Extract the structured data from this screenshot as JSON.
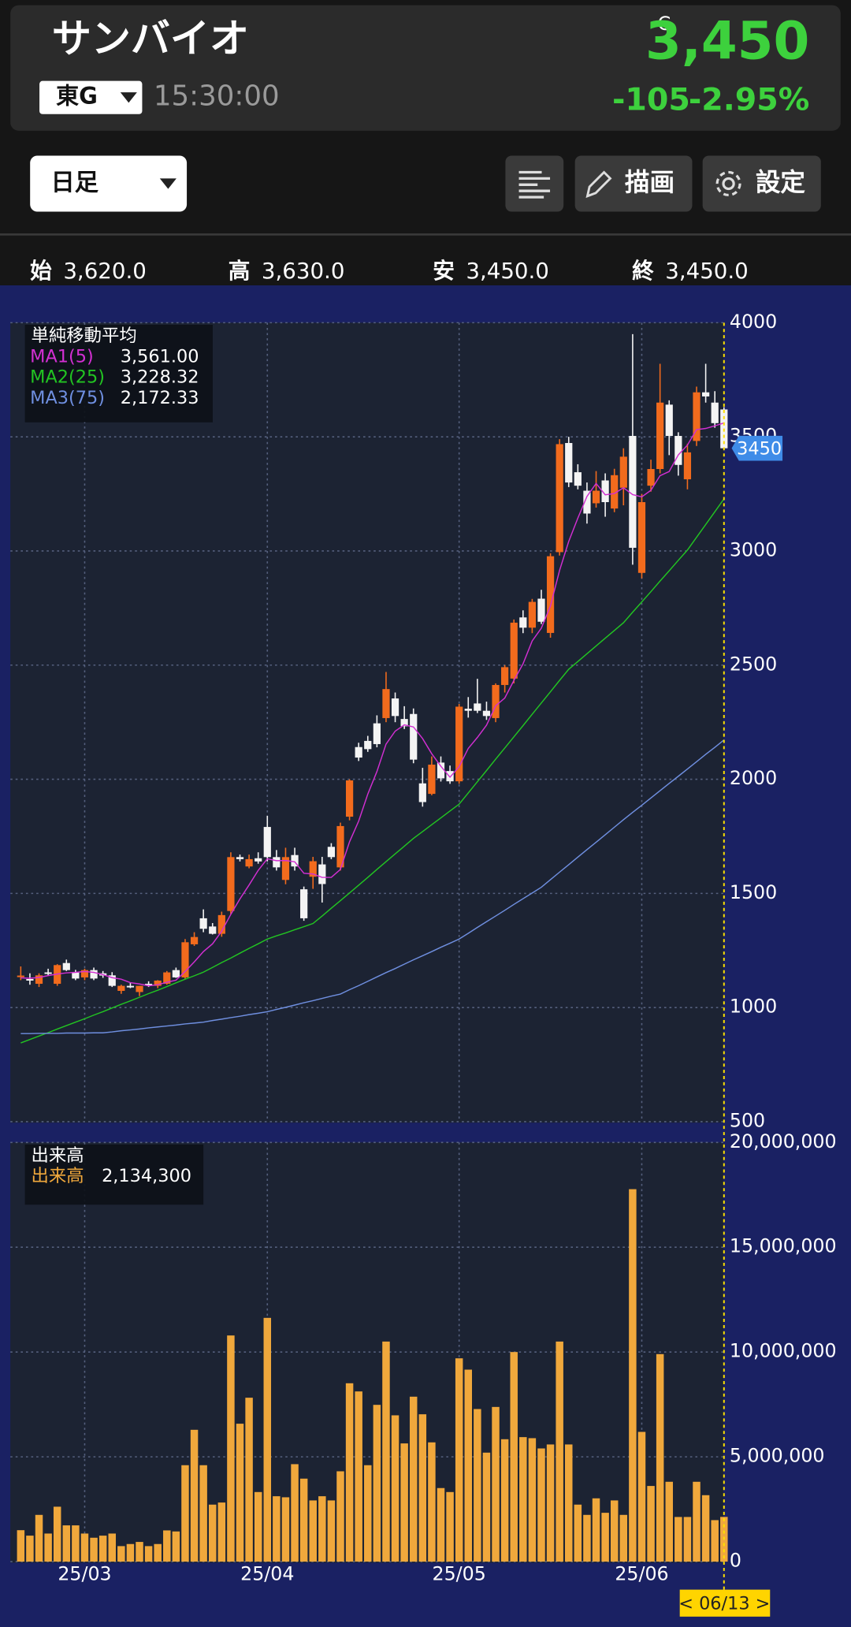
{
  "header": {
    "name": "サンバイオ",
    "market": "東G",
    "time": "15:30:00",
    "price_flag": "C",
    "price": "3,450",
    "change": "-105",
    "change_pct": "-2.95%"
  },
  "toolbar": {
    "period": "日足",
    "draw": "描画",
    "settings": "設定"
  },
  "ohlc": [
    {
      "key": "始",
      "value": "3,620.0"
    },
    {
      "key": "高",
      "value": "3,630.0"
    },
    {
      "key": "安",
      "value": "3,450.0"
    },
    {
      "key": "終",
      "value": "3,450.0"
    }
  ],
  "cursor_label": "< 06/13 >",
  "chart_data": [
    {
      "type": "candlestick",
      "title": "単純移動平均",
      "up_color": "#f26b1d",
      "down_color": "#f4f4f4",
      "ylim": [
        500,
        4000
      ],
      "yticks": [
        500,
        1000,
        1500,
        2000,
        2500,
        3000,
        3500,
        4000
      ],
      "grid": true,
      "ohlc": [
        [
          1140,
          1180,
          1120,
          1140
        ],
        [
          1125,
          1150,
          1100,
          1118
        ],
        [
          1104,
          1150,
          1090,
          1141
        ],
        [
          1154,
          1170,
          1140,
          1150
        ],
        [
          1104,
          1190,
          1095,
          1186
        ],
        [
          1195,
          1210,
          1160,
          1164
        ],
        [
          1154,
          1165,
          1120,
          1127
        ],
        [
          1132,
          1170,
          1120,
          1164
        ],
        [
          1164,
          1175,
          1120,
          1127
        ],
        [
          1150,
          1160,
          1130,
          1140
        ],
        [
          1141,
          1155,
          1090,
          1095
        ],
        [
          1073,
          1100,
          1060,
          1095
        ],
        [
          1095,
          1110,
          1085,
          1090
        ],
        [
          1068,
          1095,
          1050,
          1095
        ],
        [
          1104,
          1115,
          1090,
          1100
        ],
        [
          1095,
          1120,
          1085,
          1118
        ],
        [
          1104,
          1160,
          1100,
          1154
        ],
        [
          1164,
          1175,
          1130,
          1132
        ],
        [
          1132,
          1300,
          1125,
          1286
        ],
        [
          1277,
          1330,
          1270,
          1309
        ],
        [
          1391,
          1430,
          1330,
          1345
        ],
        [
          1355,
          1370,
          1320,
          1323
        ],
        [
          1323,
          1420,
          1310,
          1405
        ],
        [
          1423,
          1680,
          1410,
          1659
        ],
        [
          1659,
          1670,
          1640,
          1650
        ],
        [
          1618,
          1670,
          1610,
          1650
        ],
        [
          1654,
          1680,
          1630,
          1640
        ],
        [
          1791,
          1840,
          1640,
          1659
        ],
        [
          1659,
          1690,
          1600,
          1614
        ],
        [
          1559,
          1700,
          1540,
          1659
        ],
        [
          1668,
          1700,
          1600,
          1618
        ],
        [
          1518,
          1530,
          1380,
          1391
        ],
        [
          1573,
          1660,
          1520,
          1641
        ],
        [
          1627,
          1660,
          1460,
          1541
        ],
        [
          1704,
          1720,
          1650,
          1659
        ],
        [
          1614,
          1810,
          1600,
          1795
        ],
        [
          1836,
          2000,
          1820,
          1995
        ],
        [
          2141,
          2160,
          2080,
          2095
        ],
        [
          2168,
          2190,
          2120,
          2132
        ],
        [
          2245,
          2280,
          2140,
          2154
        ],
        [
          2268,
          2470,
          2250,
          2395
        ],
        [
          2354,
          2380,
          2250,
          2277
        ],
        [
          2264,
          2320,
          2220,
          2232
        ],
        [
          2286,
          2310,
          2070,
          2086
        ],
        [
          1982,
          2050,
          1880,
          1900
        ],
        [
          1936,
          2100,
          1930,
          2064
        ],
        [
          2073,
          2100,
          1990,
          2004
        ],
        [
          2036,
          2060,
          1980,
          1991
        ],
        [
          1991,
          2330,
          1980,
          2318
        ],
        [
          2309,
          2360,
          2270,
          2300
        ],
        [
          2332,
          2440,
          2290,
          2300
        ],
        [
          2300,
          2340,
          2260,
          2277
        ],
        [
          2268,
          2420,
          2250,
          2413
        ],
        [
          2413,
          2500,
          2380,
          2491
        ],
        [
          2441,
          2700,
          2420,
          2686
        ],
        [
          2709,
          2740,
          2640,
          2664
        ],
        [
          2664,
          2790,
          2640,
          2777
        ],
        [
          2791,
          2830,
          2680,
          2690
        ],
        [
          2641,
          2990,
          2620,
          2977
        ],
        [
          2995,
          3490,
          2980,
          3468
        ],
        [
          3473,
          3500,
          3280,
          3300
        ],
        [
          3345,
          3380,
          3270,
          3286
        ],
        [
          3264,
          3300,
          3120,
          3164
        ],
        [
          3209,
          3350,
          3190,
          3264
        ],
        [
          3309,
          3340,
          3150,
          3214
        ],
        [
          3186,
          3360,
          3170,
          3332
        ],
        [
          3277,
          3450,
          3200,
          3413
        ],
        [
          3504,
          3950,
          2940,
          3014
        ],
        [
          2904,
          3250,
          2880,
          3214
        ],
        [
          3286,
          3400,
          3260,
          3359
        ],
        [
          3359,
          3820,
          3340,
          3650
        ],
        [
          3641,
          3660,
          3420,
          3504
        ],
        [
          3504,
          3520,
          3330,
          3377
        ],
        [
          3314,
          3470,
          3270,
          3432
        ],
        [
          3482,
          3720,
          3460,
          3695
        ],
        [
          3695,
          3820,
          3650,
          3677
        ],
        [
          3650,
          3700,
          3540,
          3560
        ],
        [
          3620,
          3630,
          3450,
          3450
        ]
      ],
      "series": [
        {
          "name": "MA1(5)",
          "color": "#d22fd2",
          "legend_value": "3,561.00",
          "values": [
            1130,
            1128,
            1132,
            1140,
            1147,
            1152,
            1154,
            1158,
            1154,
            1144,
            1131,
            1124,
            1109,
            1103,
            1095,
            1100,
            1111,
            1120,
            1158,
            1200,
            1245,
            1279,
            1334,
            1408,
            1476,
            1537,
            1601,
            1652,
            1643,
            1644,
            1638,
            1588,
            1585,
            1570,
            1570,
            1605,
            1726,
            1817,
            1935,
            2034,
            2154,
            2211,
            2238,
            2229,
            2178,
            2112,
            2057,
            2009,
            2055,
            2135,
            2183,
            2237,
            2322,
            2356,
            2433,
            2506,
            2606,
            2662,
            2759,
            2915,
            3042,
            3144,
            3239,
            3296,
            3246,
            3252,
            3277,
            3247,
            3237,
            3266,
            3330,
            3348,
            3421,
            3464,
            3532,
            3537,
            3548,
            3561.0
          ]
        },
        {
          "name": "MA2(25)",
          "color": "#22c422",
          "legend_value": "3,228.32",
          "values": [
            845,
            860,
            875,
            890,
            906,
            921,
            936,
            951,
            967,
            982,
            998,
            1014,
            1029,
            1045,
            1061,
            1076,
            1092,
            1108,
            1124,
            1139,
            1155,
            1176,
            1197,
            1217,
            1238,
            1259,
            1279,
            1300,
            1314,
            1327,
            1341,
            1354,
            1368,
            1401,
            1435,
            1468,
            1502,
            1536,
            1570,
            1605,
            1639,
            1673,
            1707,
            1741,
            1771,
            1801,
            1831,
            1861,
            1891,
            1940,
            1989,
            2038,
            2088,
            2137,
            2186,
            2235,
            2285,
            2334,
            2383,
            2433,
            2482,
            2516,
            2550,
            2584,
            2618,
            2652,
            2686,
            2732,
            2777,
            2822,
            2868,
            2913,
            2959,
            3004,
            3060,
            3116,
            3172,
            3228.32
          ]
        },
        {
          "name": "MA3(75)",
          "color": "#6f8fe0",
          "legend_value": "2,172.33",
          "values": [
            886,
            886,
            887,
            887,
            887,
            888,
            888,
            888,
            889,
            889,
            893,
            898,
            902,
            906,
            911,
            915,
            919,
            923,
            928,
            932,
            936,
            943,
            949,
            956,
            962,
            969,
            975,
            982,
            992,
            1001,
            1011,
            1021,
            1030,
            1040,
            1050,
            1059,
            1078,
            1096,
            1115,
            1134,
            1153,
            1171,
            1190,
            1209,
            1227,
            1245,
            1264,
            1282,
            1300,
            1325,
            1351,
            1376,
            1401,
            1426,
            1452,
            1477,
            1502,
            1527,
            1560,
            1593,
            1626,
            1659,
            1692,
            1724,
            1757,
            1790,
            1823,
            1855,
            1886,
            1918,
            1950,
            1982,
            2013,
            2045,
            2077,
            2109,
            2140,
            2172.33
          ]
        }
      ]
    },
    {
      "type": "bar",
      "title": "出来高",
      "ylim": [
        0,
        20000000
      ],
      "yticks": [
        0,
        {
          "value": 5000000,
          "label": "5,000,000"
        },
        {
          "value": 10000000,
          "label": "10,000,000"
        },
        {
          "value": 15000000,
          "label": "15,000,000"
        },
        {
          "value": 20000000,
          "label": "20,000,000"
        }
      ],
      "grid": true,
      "categories": [
        null,
        null,
        null,
        null,
        null,
        null,
        null,
        "25/03",
        null,
        null,
        null,
        null,
        null,
        null,
        null,
        null,
        null,
        null,
        null,
        null,
        null,
        null,
        null,
        null,
        null,
        null,
        null,
        "25/04",
        null,
        null,
        null,
        null,
        null,
        null,
        null,
        null,
        null,
        null,
        null,
        null,
        null,
        null,
        null,
        null,
        null,
        null,
        null,
        null,
        "25/05",
        null,
        null,
        null,
        null,
        null,
        null,
        null,
        null,
        null,
        null,
        null,
        null,
        null,
        null,
        null,
        null,
        null,
        null,
        null,
        "25/06",
        null,
        null,
        null,
        null,
        null,
        null,
        null,
        null,
        null
      ],
      "series": [
        {
          "name": "出来高",
          "color": "#f0a83c",
          "legend_value": "2,134,300",
          "values": [
            1500000,
            1240000,
            2230000,
            1340000,
            2620000,
            1730000,
            1730000,
            1340000,
            1140000,
            1240000,
            1340000,
            740000,
            840000,
            940000,
            740000,
            840000,
            1490000,
            1440000,
            4600000,
            6290000,
            4600000,
            2720000,
            2820000,
            10790000,
            6580000,
            7820000,
            3320000,
            11630000,
            3120000,
            3070000,
            4650000,
            3960000,
            2920000,
            3120000,
            2920000,
            4310000,
            8510000,
            8120000,
            4600000,
            7480000,
            10500000,
            6980000,
            5640000,
            7870000,
            7030000,
            5690000,
            3510000,
            3320000,
            9700000,
            9160000,
            7280000,
            5200000,
            7380000,
            5840000,
            10000000,
            5940000,
            5890000,
            5400000,
            5590000,
            10500000,
            5590000,
            2720000,
            2230000,
            3020000,
            2330000,
            2920000,
            2230000,
            17770000,
            6190000,
            3610000,
            9900000,
            3810000,
            2130000,
            2130000,
            3810000,
            3170000,
            1980000,
            2134300
          ]
        }
      ]
    }
  ]
}
